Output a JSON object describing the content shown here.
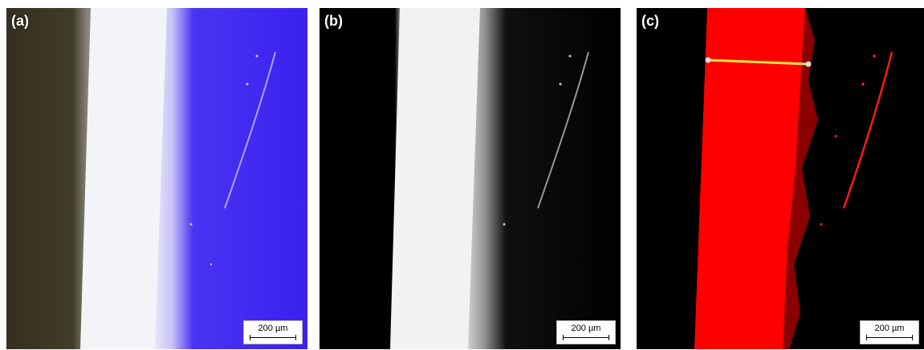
{
  "panels": [
    {
      "label": "(a)",
      "scale_bar": "200 µm"
    },
    {
      "label": "(b)",
      "scale_bar": "200 µm"
    },
    {
      "label": "(c)",
      "scale_bar": "200 µm"
    }
  ],
  "colors": {
    "panel_a_background": "#2e2a1a",
    "panel_a_surface": "#3a21f0",
    "panel_b_background": "#000000",
    "panel_c_background": "#000000",
    "panel_c_region": "#ff0000",
    "measure_line": "#f5e642"
  }
}
